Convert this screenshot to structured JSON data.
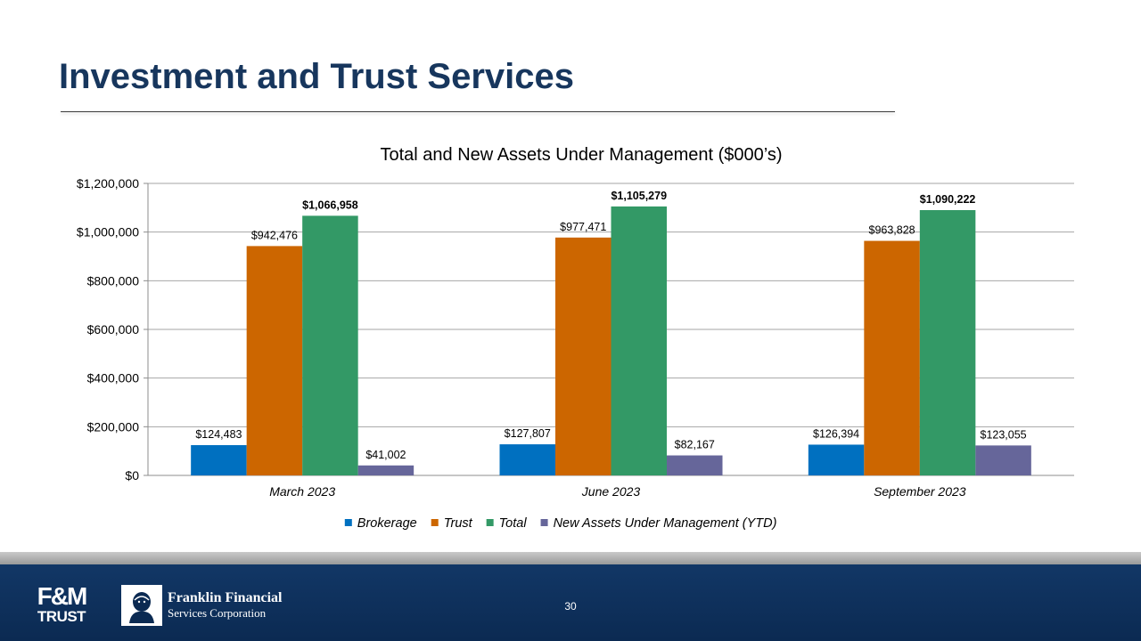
{
  "slide": {
    "title": "Investment and Trust Services",
    "page_number": "30"
  },
  "footer": {
    "fm_logo_top": "F&M",
    "fm_logo_bottom": "TRUST",
    "company_name_line1": "Franklin Financial",
    "company_name_line2": "Services Corporation"
  },
  "colors": {
    "title": "#17365d",
    "footer": "#123766",
    "brokerage": "#0070c0",
    "trust": "#cc6600",
    "total": "#339966",
    "new_assets": "#66669a"
  },
  "chart_data": {
    "type": "bar",
    "title": "Total and New Assets Under Management ($000’s)",
    "xlabel": "",
    "ylabel": "",
    "ylim": [
      0,
      1200000
    ],
    "yticks": [
      {
        "value": 0,
        "label": "$0"
      },
      {
        "value": 200000,
        "label": "$200,000"
      },
      {
        "value": 400000,
        "label": "$400,000"
      },
      {
        "value": 600000,
        "label": "$600,000"
      },
      {
        "value": 800000,
        "label": "$800,000"
      },
      {
        "value": 1000000,
        "label": "$1,000,000"
      },
      {
        "value": 1200000,
        "label": "$1,200,000"
      }
    ],
    "grid": true,
    "legend_position": "bottom",
    "categories": [
      "March 2023",
      "June 2023",
      "September 2023"
    ],
    "series": [
      {
        "name": "Brokerage",
        "color": "#0070c0",
        "bold_labels": false,
        "values": [
          124483,
          127807,
          126394
        ],
        "labels": [
          "$124,483",
          "$127,807",
          "$126,394"
        ]
      },
      {
        "name": "Trust",
        "color": "#cc6600",
        "bold_labels": false,
        "values": [
          942476,
          977471,
          963828
        ],
        "labels": [
          "$942,476",
          "$977,471",
          "$963,828"
        ]
      },
      {
        "name": "Total",
        "color": "#339966",
        "bold_labels": true,
        "values": [
          1066958,
          1105279,
          1090222
        ],
        "labels": [
          "$1,066,958",
          "$1,105,279",
          "$1,090,222"
        ]
      },
      {
        "name": "New Assets Under Management (YTD)",
        "color": "#66669a",
        "bold_labels": false,
        "values": [
          41002,
          82167,
          123055
        ],
        "labels": [
          "$41,002",
          "$82,167",
          "$123,055"
        ]
      }
    ]
  }
}
